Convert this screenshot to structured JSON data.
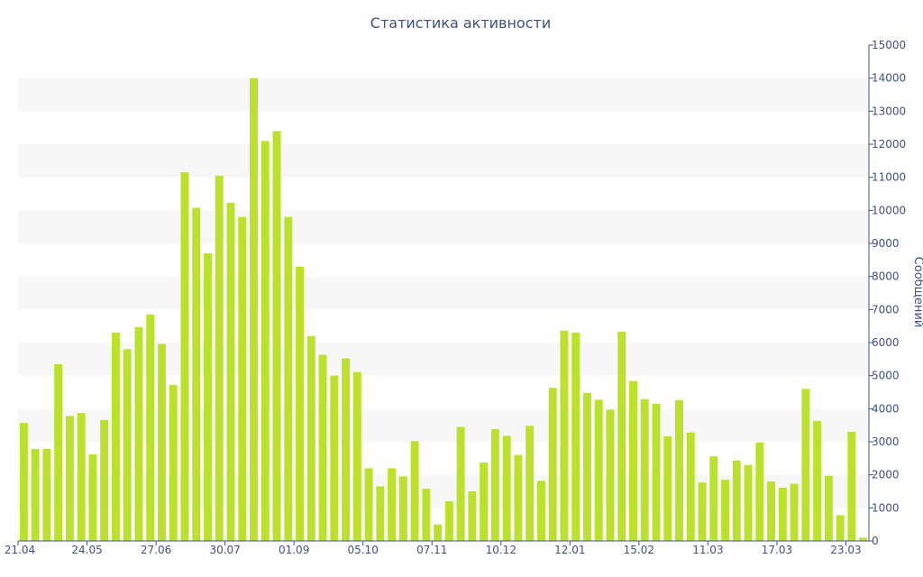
{
  "chart_data": {
    "type": "bar",
    "title": "Статистика активности",
    "xlabel": "",
    "ylabel": "Сообщений",
    "ylim": [
      0,
      15000
    ],
    "y_ticks": [
      0,
      1000,
      2000,
      3000,
      4000,
      5000,
      6000,
      7000,
      8000,
      9000,
      10000,
      11000,
      12000,
      13000,
      14000,
      15000
    ],
    "x_tick_labels": [
      "21.04",
      "24.05",
      "27.06",
      "30.07",
      "01.09",
      "05.10",
      "07.11",
      "10.12",
      "12.01",
      "15.02",
      "11.03",
      "17.03",
      "23.03"
    ],
    "x_tick_positions": [
      0,
      6,
      12,
      18,
      24,
      30,
      36,
      42,
      48,
      54,
      60,
      66,
      72
    ],
    "grid": "alternating horizontal bands",
    "legend": "none",
    "color": "#bae22b",
    "values": [
      3570,
      2780,
      2790,
      5350,
      3780,
      3870,
      2620,
      3660,
      6300,
      5800,
      6470,
      6850,
      5960,
      4720,
      11150,
      10080,
      8700,
      11050,
      10230,
      9800,
      14000,
      12100,
      12400,
      9800,
      8300,
      6200,
      5630,
      5000,
      5520,
      5110,
      2200,
      1650,
      2200,
      1950,
      3020,
      1580,
      500,
      1200,
      3450,
      1500,
      2370,
      3380,
      3180,
      2600,
      3480,
      1820,
      4630,
      6360,
      6300,
      4480,
      4270,
      3970,
      6330,
      4840,
      4290,
      4150,
      3170,
      4260,
      3280,
      1770,
      2560,
      1850,
      2430,
      2300,
      2980,
      1800,
      1610,
      1730,
      4600,
      3630,
      1970,
      780,
      3300,
      100
    ]
  }
}
